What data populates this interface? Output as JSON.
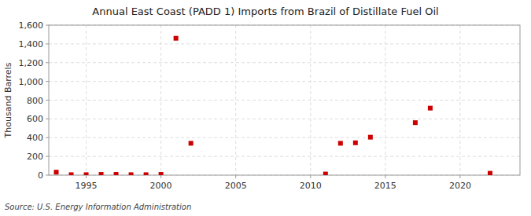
{
  "chart_data": {
    "type": "scatter",
    "title": "Annual East Coast (PADD 1) Imports from Brazil of Distillate Fuel Oil",
    "y_label": "Thousand Barrels",
    "source": "Source: U.S. Energy Information Administration",
    "x": [
      1993,
      1994,
      1995,
      1996,
      1997,
      1998,
      1999,
      2000,
      2001,
      2002,
      2011,
      2012,
      2013,
      2014,
      2017,
      2018,
      2022
    ],
    "values": [
      32,
      5,
      5,
      8,
      8,
      5,
      5,
      8,
      1460,
      340,
      12,
      340,
      345,
      405,
      560,
      715,
      20
    ],
    "color": "#cc0000",
    "marker": "square",
    "xlim": [
      1992.5,
      2024
    ],
    "ylim": [
      0,
      1600
    ],
    "xticks": [
      1995,
      2000,
      2005,
      2010,
      2015,
      2020
    ],
    "yticks": [
      0,
      200,
      400,
      600,
      800,
      {
        "value": 1000,
        "label": "1,000"
      },
      {
        "value": 1200,
        "label": "1,200"
      },
      {
        "value": 1400,
        "label": "1,400"
      },
      {
        "value": 1600,
        "label": "1,600"
      }
    ],
    "grid": true
  }
}
